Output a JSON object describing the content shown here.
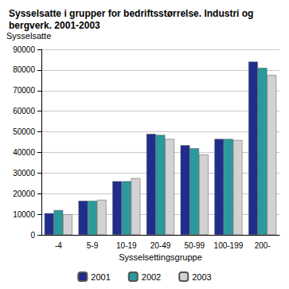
{
  "chart_data": {
    "type": "bar",
    "title": "Sysselsatte i grupper for bedriftsstørrelse. Industri og bergverk. 2001-2003",
    "y_label": "Sysselsatte",
    "x_label": "Sysselsettingsgruppe",
    "categories": [
      "-4",
      "5-9",
      "10-19",
      "20-49",
      "50-99",
      "100-199",
      "200-"
    ],
    "series": [
      {
        "name": "2001",
        "color": "#1f2d8c",
        "values": [
          10500,
          16500,
          26000,
          49000,
          43500,
          46500,
          84000
        ]
      },
      {
        "name": "2002",
        "color": "#2b9a9c",
        "values": [
          12000,
          16500,
          26000,
          48500,
          42000,
          46500,
          81000
        ]
      },
      {
        "name": "2003",
        "color": "#d2d2d2",
        "values": [
          10000,
          17000,
          27500,
          46500,
          39000,
          46000,
          77500
        ]
      }
    ],
    "ylim": [
      0,
      90000
    ],
    "yticks": [
      0,
      10000,
      20000,
      30000,
      40000,
      50000,
      60000,
      70000,
      80000,
      90000
    ],
    "grid": true,
    "legend": "bottom"
  }
}
